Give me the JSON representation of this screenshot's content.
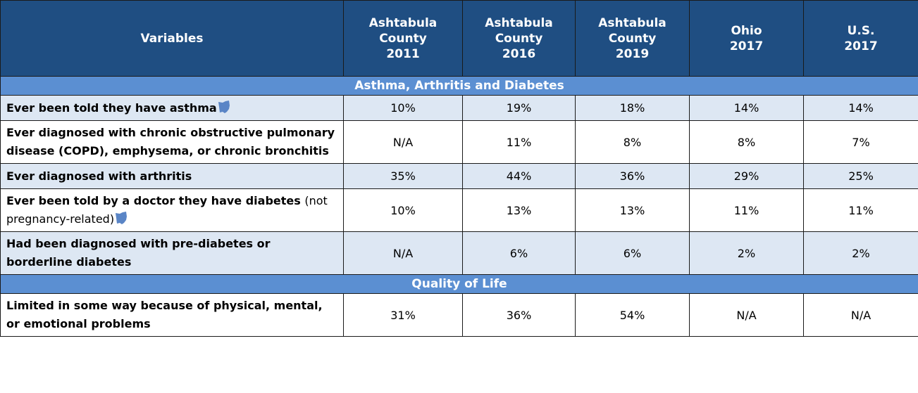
{
  "table": {
    "columns": [
      "Variables",
      "Ashtabula County 2011",
      "Ashtabula County 2016",
      "Ashtabula County 2019",
      "Ohio 2017",
      "U.S. 2017"
    ],
    "sections": [
      {
        "title": "Asthma, Arthritis and Diabetes",
        "rows": [
          {
            "label": "Ever been told they have asthma",
            "ohio_icon": true,
            "values": [
              "10%",
              "19%",
              "18%",
              "14%",
              "14%"
            ]
          },
          {
            "label": "Ever diagnosed with chronic obstructive pulmonary disease (COPD), emphysema, or chronic bronchitis",
            "values": [
              "N/A",
              "11%",
              "8%",
              "8%",
              "7%"
            ]
          },
          {
            "label": "Ever diagnosed with arthritis",
            "values": [
              "35%",
              "44%",
              "36%",
              "29%",
              "25%"
            ]
          },
          {
            "label": "Ever been told by a doctor they have diabetes",
            "note": "(not pregnancy-related)",
            "ohio_icon": true,
            "values": [
              "10%",
              "13%",
              "13%",
              "11%",
              "11%"
            ]
          },
          {
            "label": "Had been diagnosed with pre-diabetes or borderline diabetes",
            "values": [
              "N/A",
              "6%",
              "6%",
              "2%",
              "2%"
            ]
          }
        ]
      },
      {
        "title": "Quality of Life",
        "rows": [
          {
            "label": "Limited in some way because of physical, mental, or emotional problems",
            "values": [
              "31%",
              "36%",
              "54%",
              "N/A",
              "N/A"
            ]
          }
        ]
      }
    ]
  }
}
